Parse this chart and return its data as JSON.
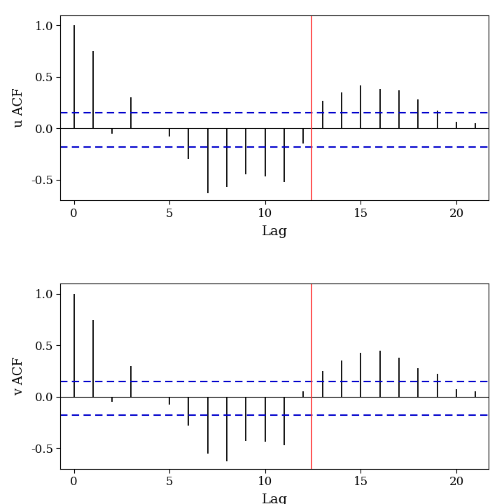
{
  "u_acf": [
    1.0,
    0.75,
    -0.05,
    0.3,
    0.0,
    -0.08,
    -0.3,
    -0.63,
    -0.57,
    -0.45,
    -0.47,
    -0.52,
    -0.15,
    0.27,
    0.35,
    0.42,
    0.38,
    0.37,
    0.28,
    0.17,
    0.06,
    0.05
  ],
  "v_acf": [
    1.0,
    0.75,
    -0.05,
    0.3,
    0.0,
    -0.08,
    -0.28,
    -0.55,
    -0.63,
    -0.43,
    -0.44,
    -0.47,
    0.05,
    0.25,
    0.35,
    0.43,
    0.45,
    0.38,
    0.28,
    0.22,
    0.07,
    0.05
  ],
  "lags": [
    0,
    1,
    2,
    3,
    4,
    5,
    6,
    7,
    8,
    9,
    10,
    11,
    12,
    13,
    14,
    15,
    16,
    17,
    18,
    19,
    20,
    21
  ],
  "ci_upper": 0.15,
  "ci_lower": -0.18,
  "m2_lag": 12.42,
  "ylim": [
    -0.7,
    1.1
  ],
  "yticks": [
    -0.5,
    0.0,
    0.5,
    1.0
  ],
  "xlabel": "Lag",
  "ylabel_u": "u ACF",
  "ylabel_v": "v ACF",
  "ci_color": "#0000CC",
  "vline_color": "#FF3333",
  "bar_color": "#000000",
  "bg_color": "#FFFFFF",
  "ci_linewidth": 1.5,
  "vline_linewidth": 1.2,
  "stem_linewidth": 1.3
}
